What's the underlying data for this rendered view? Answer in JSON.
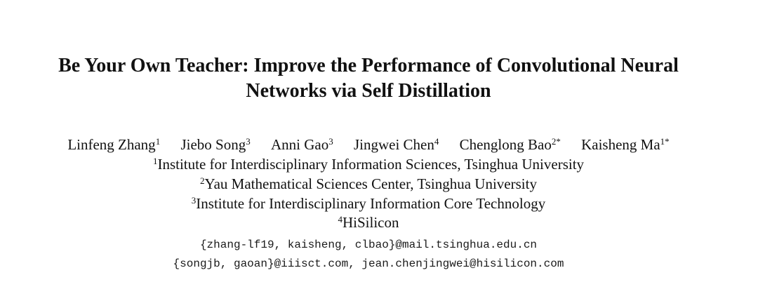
{
  "title": {
    "line1": "Be Your Own Teacher: Improve the Performance of Convolutional Neural",
    "line2": "Networks via Self Distillation"
  },
  "authors": [
    {
      "name": "Linfeng Zhang",
      "sup": "1"
    },
    {
      "name": "Jiebo Song",
      "sup": "3"
    },
    {
      "name": "Anni Gao",
      "sup": "3"
    },
    {
      "name": "Jingwei Chen",
      "sup": "4"
    },
    {
      "name": "Chenglong Bao",
      "sup": "2*"
    },
    {
      "name": "Kaisheng Ma",
      "sup": "1*"
    }
  ],
  "affiliations": [
    {
      "sup": "1",
      "text": "Institute for Interdisciplinary Information Sciences, Tsinghua University"
    },
    {
      "sup": "2",
      "text": "Yau Mathematical Sciences Center, Tsinghua University"
    },
    {
      "sup": "3",
      "text": "Institute for Interdisciplinary Information Core Technology"
    },
    {
      "sup": "4",
      "text": "HiSilicon"
    }
  ],
  "emails": {
    "line1": "{zhang-lf19, kaisheng, clbao}@mail.tsinghua.edu.cn",
    "line2": "{songjb, gaoan}@iiisct.com, jean.chenjingwei@hisilicon.com"
  }
}
